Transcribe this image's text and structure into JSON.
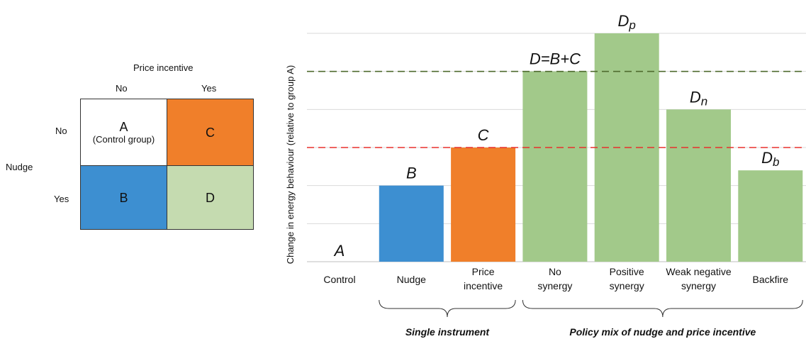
{
  "matrix": {
    "col_header": "Price incentive",
    "row_header": "Nudge",
    "col_labels": [
      "No",
      "Yes"
    ],
    "row_labels": [
      "No",
      "Yes"
    ],
    "cells": [
      {
        "letter": "A",
        "sub": "(Control group)",
        "color": "#ffffff"
      },
      {
        "letter": "C",
        "sub": "",
        "color": "#f07f2a"
      },
      {
        "letter": "B",
        "sub": "",
        "color": "#3d8fd1"
      },
      {
        "letter": "D",
        "sub": "",
        "color": "#c5dbb0"
      }
    ]
  },
  "chart_data": {
    "type": "bar",
    "ylabel": "Change in energy behaviour  (relative to group A)",
    "ylim": [
      0,
      6
    ],
    "grid": true,
    "categories": [
      "Control",
      "Nudge",
      "Price incentive",
      "No synergy",
      "Positive synergy",
      "Weak negative synergy",
      "Backfire"
    ],
    "category_lines": [
      [
        "Control"
      ],
      [
        "Nudge"
      ],
      [
        "Price",
        "incentive"
      ],
      [
        "No",
        "synergy"
      ],
      [
        "Positive",
        "synergy"
      ],
      [
        "Weak negative",
        "synergy"
      ],
      [
        "Backfire"
      ]
    ],
    "values": [
      0,
      2,
      3,
      5,
      6,
      4,
      2.4
    ],
    "colors": [
      "#ffffff",
      "#3d8fd1",
      "#f07f2a",
      "#a2c98a",
      "#a2c98a",
      "#a2c98a",
      "#a2c98a"
    ],
    "bar_labels": [
      {
        "main": "A",
        "sub": ""
      },
      {
        "main": "B",
        "sub": ""
      },
      {
        "main": "C",
        "sub": ""
      },
      {
        "main": "D=B+C",
        "sub": ""
      },
      {
        "main": "D",
        "sub": "p"
      },
      {
        "main": "D",
        "sub": "n"
      },
      {
        "main": "D",
        "sub": "b"
      }
    ],
    "reference_lines": [
      {
        "value": 5,
        "color": "#4f6b2f"
      },
      {
        "value": 3,
        "color": "#e8312d"
      }
    ],
    "groups": [
      {
        "label": "Single instrument",
        "from": 1,
        "to": 2
      },
      {
        "label": "Policy mix of nudge and price incentive",
        "from": 3,
        "to": 6
      }
    ]
  }
}
